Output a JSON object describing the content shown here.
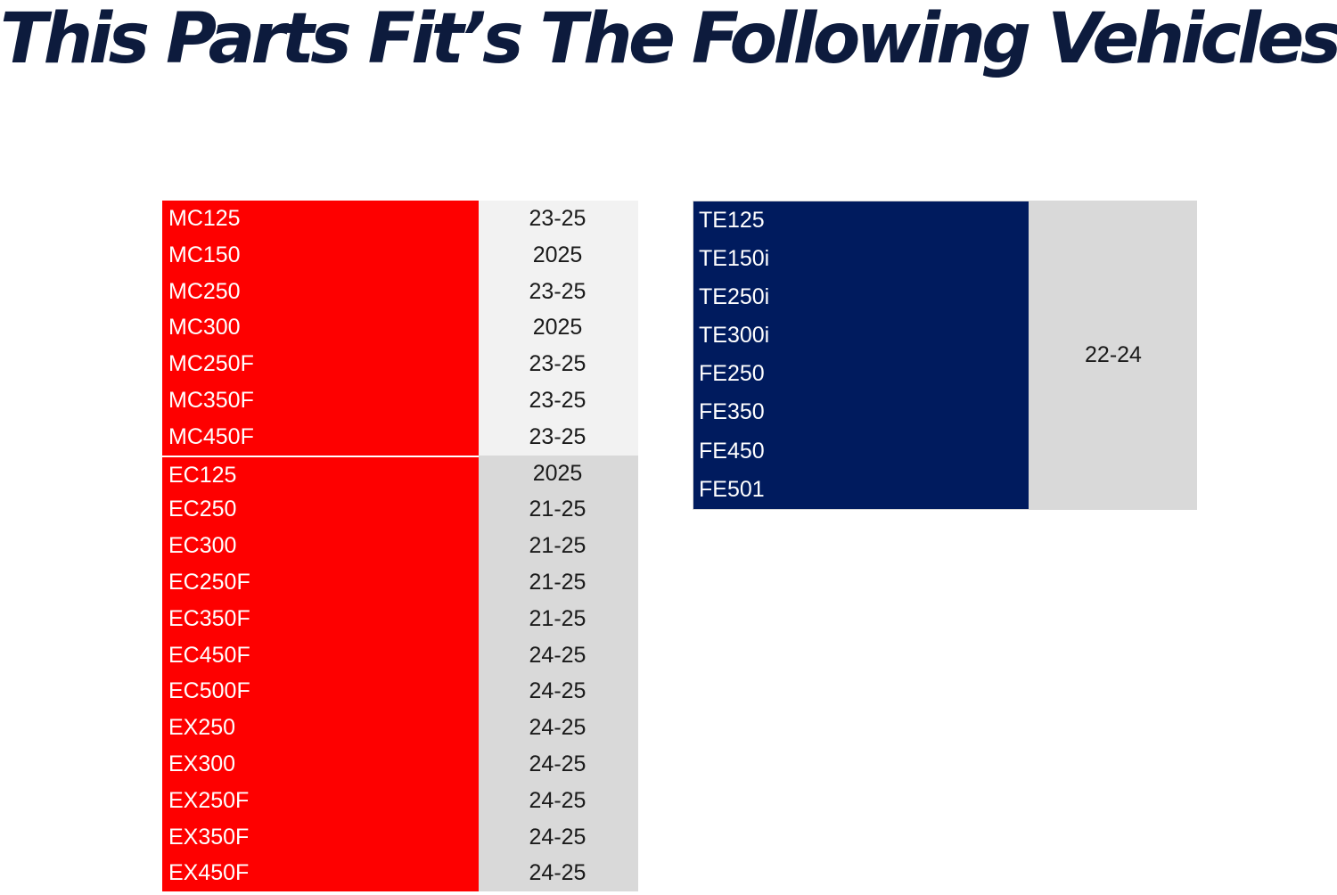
{
  "title": "This Parts Fit’s The Following Vehicles",
  "colors": {
    "title": "#0d1b3d",
    "left_model_bg": "#fe0000",
    "mc_year_bg": "#f2f2f2",
    "ec_year_bg": "#d9d9d9",
    "right_model_bg": "#001b5e",
    "right_year_bg": "#d9d9d9"
  },
  "left_table": {
    "mc_rows": [
      {
        "model": "MC125",
        "years": "23-25"
      },
      {
        "model": "MC150",
        "years": "2025"
      },
      {
        "model": "MC250",
        "years": "23-25"
      },
      {
        "model": "MC300",
        "years": "2025"
      },
      {
        "model": "MC250F",
        "years": "23-25"
      },
      {
        "model": "MC350F",
        "years": "23-25"
      },
      {
        "model": "MC450F",
        "years": "23-25"
      }
    ],
    "ec_rows": [
      {
        "model": "EC125",
        "years": "2025"
      },
      {
        "model": "EC250",
        "years": "21-25"
      },
      {
        "model": "EC300",
        "years": "21-25"
      },
      {
        "model": "EC250F",
        "years": "21-25"
      },
      {
        "model": "EC350F",
        "years": "21-25"
      },
      {
        "model": "EC450F",
        "years": "24-25"
      },
      {
        "model": "EC500F",
        "years": "24-25"
      },
      {
        "model": "EX250",
        "years": "24-25"
      },
      {
        "model": "EX300",
        "years": "24-25"
      },
      {
        "model": "EX250F",
        "years": "24-25"
      },
      {
        "model": "EX350F",
        "years": "24-25"
      },
      {
        "model": "EX450F",
        "years": "24-25"
      }
    ]
  },
  "right_table": {
    "models": [
      "TE125",
      "TE150i",
      "TE250i",
      "TE300i",
      "FE250",
      "FE350",
      "FE450",
      "FE501"
    ],
    "years": "22-24"
  }
}
